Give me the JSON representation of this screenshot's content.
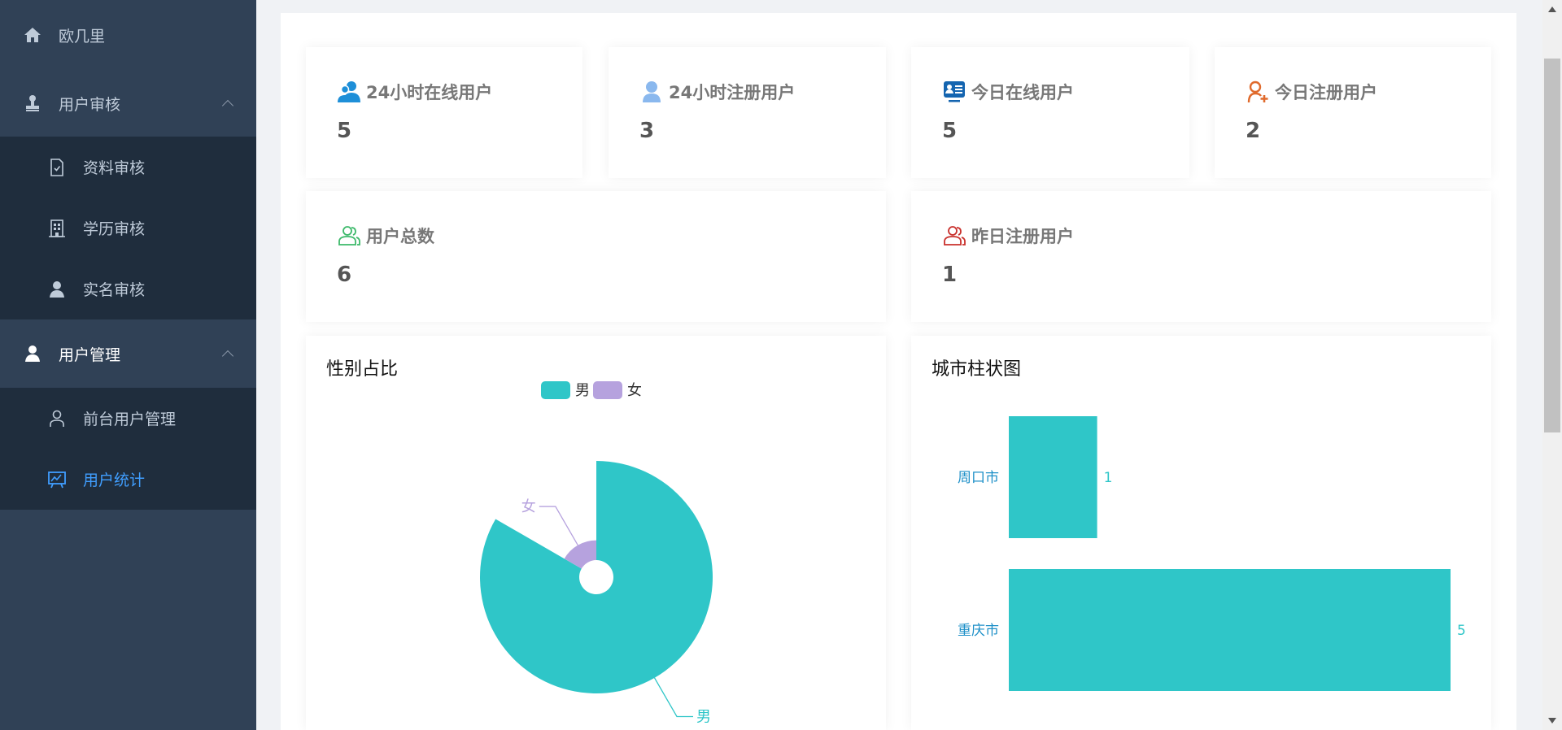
{
  "sidebar": {
    "home": {
      "label": "欧几里",
      "icon": "home-icon"
    },
    "groups": [
      {
        "label": "用户审核",
        "icon": "stamp-icon",
        "expanded": true,
        "items": [
          {
            "label": "资料审核",
            "icon": "document-check-icon"
          },
          {
            "label": "学历审核",
            "icon": "building-icon"
          },
          {
            "label": "实名审核",
            "icon": "user-icon"
          }
        ]
      },
      {
        "label": "用户管理",
        "icon": "user-icon",
        "expanded": true,
        "items": [
          {
            "label": "前台用户管理",
            "icon": "user-outline-icon"
          },
          {
            "label": "用户统计",
            "icon": "presentation-chart-icon",
            "active": true
          }
        ]
      }
    ],
    "active_color": "#409eff"
  },
  "stats": [
    {
      "label": "24小时在线用户",
      "value": "5",
      "icon": "users-icon",
      "color": "#1e8fd8"
    },
    {
      "label": "24小时注册用户",
      "value": "3",
      "icon": "user-icon",
      "color": "#8ab8ee"
    },
    {
      "label": "今日在线用户",
      "value": "5",
      "icon": "id-card-icon",
      "color": "#1565b0"
    },
    {
      "label": "今日注册用户",
      "value": "2",
      "icon": "user-add-icon",
      "color": "#e06a2c"
    },
    {
      "label": "用户总数",
      "value": "6",
      "icon": "users-outline-icon",
      "color": "#3cb96a"
    },
    {
      "label": "昨日注册用户",
      "value": "1",
      "icon": "users-outline-icon",
      "color": "#c9302c"
    }
  ],
  "chart_data": [
    {
      "type": "pie",
      "rose": true,
      "title": "性别占比",
      "legend_position": "top",
      "categories": [
        "男",
        "女"
      ],
      "values": [
        5,
        1
      ],
      "colors": [
        "#2fc6c8",
        "#b6a2de"
      ]
    },
    {
      "type": "bar",
      "orientation": "horizontal",
      "title": "城市柱状图",
      "categories": [
        "周口市",
        "重庆市"
      ],
      "values": [
        1,
        5
      ],
      "xlim": [
        0,
        5
      ],
      "grid": false,
      "color": "#2fc6c8",
      "label_color": "#1e90c8"
    }
  ]
}
